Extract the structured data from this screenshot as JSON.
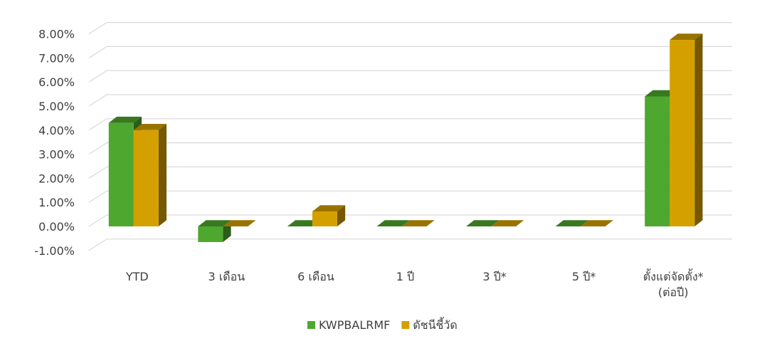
{
  "chart_data": {
    "type": "bar",
    "categories": [
      "YTD",
      "3 เดือน",
      "6 เดือน",
      "1 ปี",
      "3 ปี*",
      "5 ปี*",
      "ตั้งแต่จัดตั้ง*\n(ต่อปี)"
    ],
    "series": [
      {
        "name": "KWPBALRMF",
        "color": "#4ea72e",
        "values": [
          4.3,
          -0.65,
          0,
          0,
          0,
          0,
          5.4
        ]
      },
      {
        "name": "ดัชนีชี้วัด",
        "color": "#d4a000",
        "values": [
          4.0,
          0,
          0.62,
          0,
          0,
          0,
          7.75
        ]
      }
    ],
    "yticks": [
      "-1.00%",
      "0.00%",
      "1.00%",
      "2.00%",
      "3.00%",
      "4.00%",
      "5.00%",
      "6.00%",
      "7.00%",
      "8.00%"
    ],
    "ylim": [
      -1,
      8
    ],
    "grid": true,
    "legend": "bottom",
    "style": "3d-clustered-column"
  }
}
